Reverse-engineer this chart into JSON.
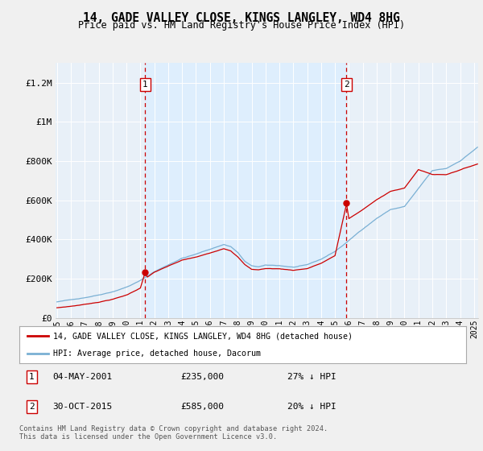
{
  "title": "14, GADE VALLEY CLOSE, KINGS LANGLEY, WD4 8HG",
  "subtitle": "Price paid vs. HM Land Registry's House Price Index (HPI)",
  "legend_line1": "14, GADE VALLEY CLOSE, KINGS LANGLEY, WD4 8HG (detached house)",
  "legend_line2": "HPI: Average price, detached house, Dacorum",
  "annotation1_date": "04-MAY-2001",
  "annotation1_price": "£235,000",
  "annotation1_hpi": "27% ↓ HPI",
  "annotation1_year": 2001.35,
  "annotation1_value": 235000,
  "annotation2_date": "30-OCT-2015",
  "annotation2_price": "£585,000",
  "annotation2_hpi": "20% ↓ HPI",
  "annotation2_year": 2015.83,
  "annotation2_value": 585000,
  "price_paid_color": "#cc0000",
  "hpi_color": "#7ab0d4",
  "shade_color": "#ddeeff",
  "plot_bg_color": "#e8f0f8",
  "fig_bg_color": "#f0f0f0",
  "ylim": [
    0,
    1300000
  ],
  "xlim_start": 1994.9,
  "xlim_end": 2025.3,
  "yticks": [
    0,
    200000,
    400000,
    600000,
    800000,
    1000000,
    1200000
  ],
  "ytick_labels": [
    "£0",
    "£200K",
    "£400K",
    "£600K",
    "£800K",
    "£1M",
    "£1.2M"
  ],
  "xtick_years": [
    1995,
    1996,
    1997,
    1998,
    1999,
    2000,
    2001,
    2002,
    2003,
    2004,
    2005,
    2006,
    2007,
    2008,
    2009,
    2010,
    2011,
    2012,
    2013,
    2014,
    2015,
    2016,
    2017,
    2018,
    2019,
    2020,
    2021,
    2022,
    2023,
    2024,
    2025
  ],
  "footer": "Contains HM Land Registry data © Crown copyright and database right 2024.\nThis data is licensed under the Open Government Licence v3.0."
}
